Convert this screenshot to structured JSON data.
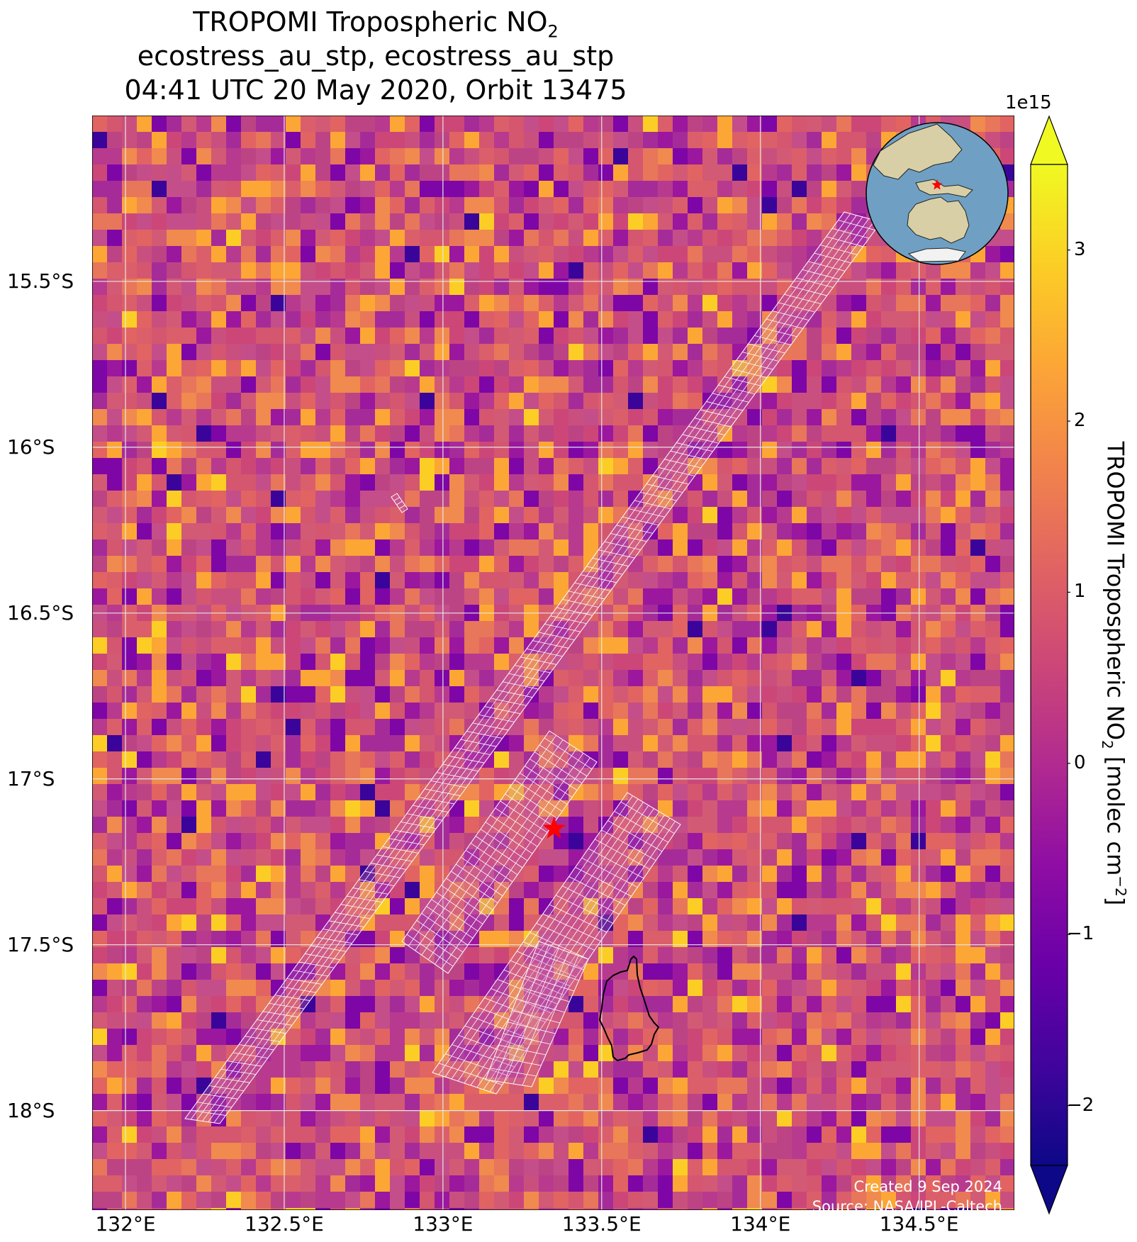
{
  "title": {
    "line1_main": "TROPOMI Tropospheric NO",
    "line1_sub": "2",
    "line2": "ecostress_au_stp, ecostress_au_stp",
    "line3": "04:41 UTC 20 May 2020, Orbit 13475"
  },
  "map": {
    "lon_range": [
      131.895,
      134.8
    ],
    "lat_range": [
      -18.3,
      -15.0
    ],
    "lat_ticks": [
      {
        "value": -15.5,
        "label": "15.5°S"
      },
      {
        "value": -16.0,
        "label": "16°S"
      },
      {
        "value": -16.5,
        "label": "16.5°S"
      },
      {
        "value": -17.0,
        "label": "17°S"
      },
      {
        "value": -17.5,
        "label": "17.5°S"
      },
      {
        "value": -18.0,
        "label": "18°S"
      }
    ],
    "lon_ticks": [
      {
        "value": 132.0,
        "label": "132°E"
      },
      {
        "value": 132.5,
        "label": "132.5°E"
      },
      {
        "value": 133.0,
        "label": "133°E"
      },
      {
        "value": 133.5,
        "label": "133.5°E"
      },
      {
        "value": 134.0,
        "label": "134°E"
      },
      {
        "value": 134.5,
        "label": "134.5°E"
      }
    ],
    "gridlines": true,
    "site_marker": {
      "lon": 133.35,
      "lat": -17.15,
      "symbol": "star",
      "color": "#ff0000"
    },
    "colors": {
      "cell_base": "#c44e8a",
      "overlay_line": "#ffffff",
      "outline": "#000000"
    }
  },
  "colorbar": {
    "colormap": "plasma",
    "range": [
      -2.35,
      3.5
    ],
    "extend": "both",
    "exponent_label": "1e15",
    "ticks": [
      {
        "value": 3,
        "label": "3"
      },
      {
        "value": 2,
        "label": "2"
      },
      {
        "value": 1,
        "label": "1"
      },
      {
        "value": 0,
        "label": "0"
      },
      {
        "value": -1,
        "label": "−1"
      },
      {
        "value": -2,
        "label": "−2"
      }
    ],
    "label_main": "TROPOMI Tropospheric NO",
    "label_sub": "2",
    "label_mid": " [molec cm",
    "label_sup": "−2",
    "label_end": "]"
  },
  "inset": {
    "type": "globe",
    "ocean_color": "#6fa0c4",
    "land_color": "#d8cfa6",
    "marker_color": "#ff0000"
  },
  "credits": {
    "created": "Created 9 Sep 2024",
    "source": "Source: NASA/JPL-Caltech"
  }
}
